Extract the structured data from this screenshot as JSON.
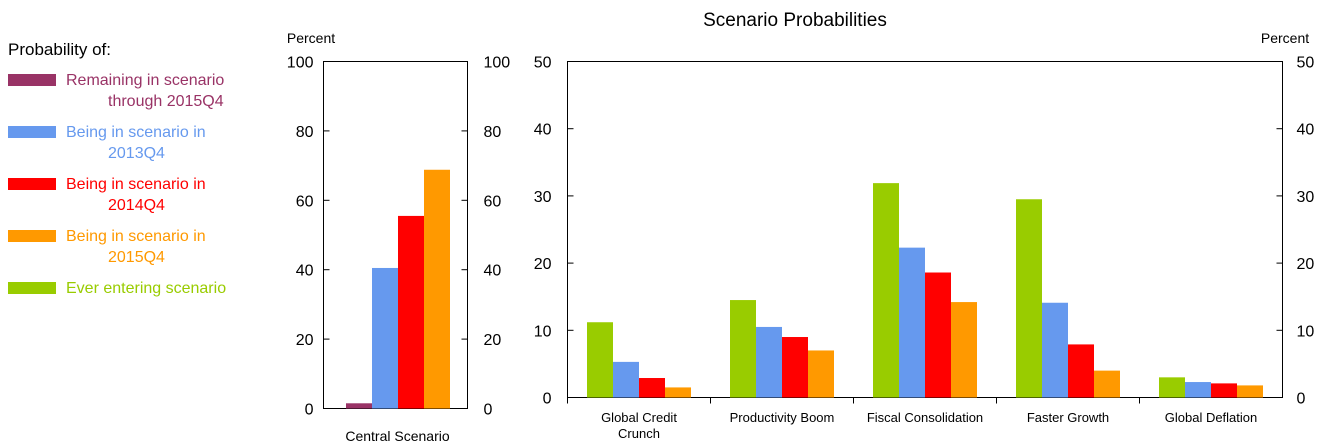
{
  "legend": {
    "title": "Probability of:",
    "items": [
      {
        "lines": [
          "Remaining in scenario",
          "through 2015Q4"
        ],
        "color": "#993366"
      },
      {
        "lines": [
          "Being in scenario in",
          "2013Q4"
        ],
        "color": "#6699ee"
      },
      {
        "lines": [
          "Being in scenario in",
          "2014Q4"
        ],
        "color": "#ff0000"
      },
      {
        "lines": [
          "Being in scenario in",
          "2015Q4"
        ],
        "color": "#ff9900"
      },
      {
        "lines": [
          "Ever entering scenario"
        ],
        "color": "#99cc00"
      }
    ]
  },
  "chart_data": [
    {
      "type": "bar",
      "title": "",
      "ylabel": "Percent",
      "ylim": [
        0,
        100
      ],
      "yticks": [
        0,
        20,
        40,
        60,
        80,
        100
      ],
      "categories": [
        "Central Scenario"
      ],
      "series": [
        {
          "name": "Remaining in scenario through 2015Q4",
          "color": "#993366",
          "values": [
            1.5
          ]
        },
        {
          "name": "Being in scenario in 2013Q4",
          "color": "#6699ee",
          "values": [
            40.5
          ]
        },
        {
          "name": "Being in scenario in 2014Q4",
          "color": "#ff0000",
          "values": [
            55.5
          ]
        },
        {
          "name": "Being in scenario in 2015Q4",
          "color": "#ff9900",
          "values": [
            68.8
          ]
        }
      ]
    },
    {
      "type": "bar",
      "title": "Scenario Probabilities",
      "ylabel": "Percent",
      "ylim": [
        0,
        50
      ],
      "yticks": [
        0,
        10,
        20,
        30,
        40,
        50
      ],
      "categories": [
        [
          "Global Credit",
          "Crunch"
        ],
        [
          "Productivity Boom"
        ],
        [
          "Fiscal Consolidation"
        ],
        [
          "Faster Growth"
        ],
        [
          "Global Deflation"
        ]
      ],
      "series": [
        {
          "name": "Ever entering scenario",
          "color": "#99cc00",
          "values": [
            11.2,
            14.5,
            31.9,
            29.5,
            3.0
          ]
        },
        {
          "name": "Being in scenario in 2013Q4",
          "color": "#6699ee",
          "values": [
            5.3,
            10.5,
            22.3,
            14.1,
            2.3
          ]
        },
        {
          "name": "Being in scenario in 2014Q4",
          "color": "#ff0000",
          "values": [
            2.9,
            9.0,
            18.6,
            7.9,
            2.1
          ]
        },
        {
          "name": "Being in scenario in 2015Q4",
          "color": "#ff9900",
          "values": [
            1.5,
            7.0,
            14.2,
            4.0,
            1.8
          ]
        }
      ]
    }
  ]
}
